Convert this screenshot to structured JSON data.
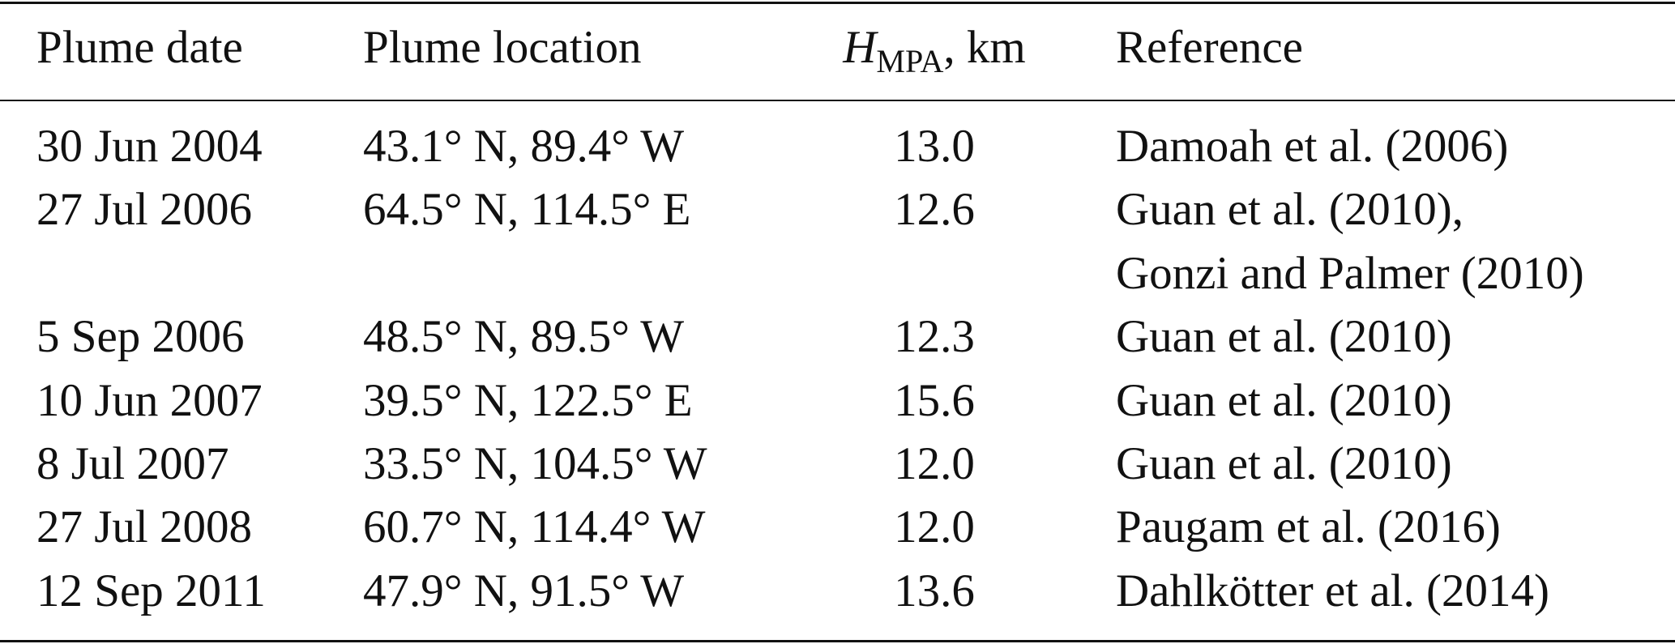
{
  "table": {
    "header": {
      "date": "Plume date",
      "location": "Plume location",
      "height": {
        "symbol": "H",
        "subscript": "MPA",
        "unit": ", km"
      },
      "reference": "Reference"
    },
    "rows": [
      {
        "date": "30 Jun 2004",
        "location": "43.1° N, 89.4° W",
        "height": "13.0",
        "reference": [
          "Damoah et al. (2006)"
        ]
      },
      {
        "date": "27 Jul 2006",
        "location": "64.5° N, 114.5° E",
        "height": "12.6",
        "reference": [
          "Guan et al. (2010),",
          "Gonzi and Palmer (2010)"
        ]
      },
      {
        "date": "5 Sep 2006",
        "location": "48.5° N, 89.5° W",
        "height": "12.3",
        "reference": [
          "Guan et al. (2010)"
        ]
      },
      {
        "date": "10 Jun 2007",
        "location": "39.5° N, 122.5° E",
        "height": "15.6",
        "reference": [
          "Guan et al. (2010)"
        ]
      },
      {
        "date": "8 Jul 2007",
        "location": "33.5° N, 104.5° W",
        "height": "12.0",
        "reference": [
          "Guan et al. (2010)"
        ]
      },
      {
        "date": "27 Jul 2008",
        "location": "60.7° N, 114.4° W",
        "height": "12.0",
        "reference": [
          "Paugam et al. (2016)"
        ]
      },
      {
        "date": "12 Sep 2011",
        "location": "47.9° N, 91.5° W",
        "height": "13.6",
        "reference": [
          "Dahlkötter et al. (2014)"
        ]
      }
    ]
  }
}
